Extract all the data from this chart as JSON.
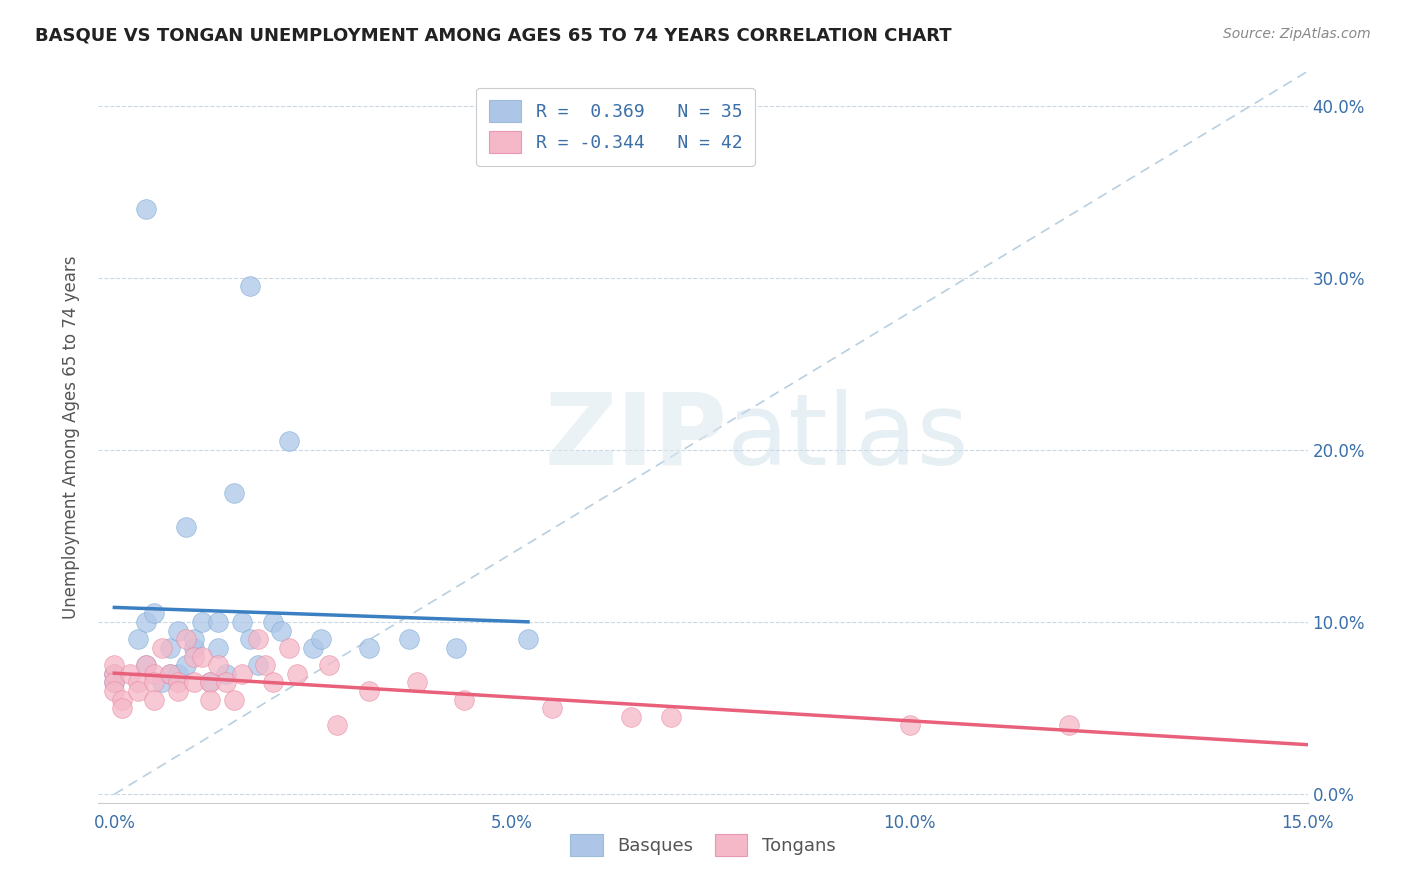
{
  "title": "BASQUE VS TONGAN UNEMPLOYMENT AMONG AGES 65 TO 74 YEARS CORRELATION CHART",
  "source": "Source: ZipAtlas.com",
  "ylabel": "Unemployment Among Ages 65 to 74 years",
  "xlim": [
    0.0,
    0.15
  ],
  "ylim": [
    0.0,
    0.42
  ],
  "legend_entries": [
    {
      "label": "R =  0.369   N = 35",
      "facecolor": "#adc6e8",
      "edgecolor": "#7aaad4"
    },
    {
      "label": "R = -0.344   N = 42",
      "facecolor": "#f5b8c8",
      "edgecolor": "#e888a0"
    }
  ],
  "basque_color": "#adc6e8",
  "basque_line_color": "#3a7fc1",
  "tongan_color": "#f5b8c8",
  "tongan_line_color": "#e8607a",
  "dashed_line_color": "#b8cfe0",
  "watermark_zip": "ZIP",
  "watermark_atlas": "atlas",
  "basque_scatter": [
    [
      0.0,
      0.065
    ],
    [
      0.0,
      0.07
    ],
    [
      0.003,
      0.09
    ],
    [
      0.004,
      0.1
    ],
    [
      0.004,
      0.075
    ],
    [
      0.005,
      0.105
    ],
    [
      0.006,
      0.065
    ],
    [
      0.007,
      0.085
    ],
    [
      0.007,
      0.07
    ],
    [
      0.008,
      0.095
    ],
    [
      0.008,
      0.07
    ],
    [
      0.009,
      0.075
    ],
    [
      0.01,
      0.085
    ],
    [
      0.01,
      0.09
    ],
    [
      0.011,
      0.1
    ],
    [
      0.012,
      0.065
    ],
    [
      0.013,
      0.1
    ],
    [
      0.013,
      0.085
    ],
    [
      0.014,
      0.07
    ],
    [
      0.016,
      0.1
    ],
    [
      0.017,
      0.09
    ],
    [
      0.018,
      0.075
    ],
    [
      0.02,
      0.1
    ],
    [
      0.021,
      0.095
    ],
    [
      0.025,
      0.085
    ],
    [
      0.026,
      0.09
    ],
    [
      0.032,
      0.085
    ],
    [
      0.037,
      0.09
    ],
    [
      0.043,
      0.085
    ],
    [
      0.052,
      0.09
    ],
    [
      0.015,
      0.175
    ],
    [
      0.017,
      0.295
    ],
    [
      0.022,
      0.205
    ],
    [
      0.004,
      0.34
    ],
    [
      0.009,
      0.155
    ]
  ],
  "tongan_scatter": [
    [
      0.0,
      0.07
    ],
    [
      0.0,
      0.075
    ],
    [
      0.0,
      0.065
    ],
    [
      0.0,
      0.06
    ],
    [
      0.001,
      0.055
    ],
    [
      0.001,
      0.05
    ],
    [
      0.002,
      0.07
    ],
    [
      0.003,
      0.065
    ],
    [
      0.003,
      0.06
    ],
    [
      0.004,
      0.075
    ],
    [
      0.005,
      0.07
    ],
    [
      0.005,
      0.065
    ],
    [
      0.005,
      0.055
    ],
    [
      0.006,
      0.085
    ],
    [
      0.007,
      0.07
    ],
    [
      0.008,
      0.065
    ],
    [
      0.008,
      0.06
    ],
    [
      0.009,
      0.09
    ],
    [
      0.01,
      0.08
    ],
    [
      0.01,
      0.065
    ],
    [
      0.011,
      0.08
    ],
    [
      0.012,
      0.065
    ],
    [
      0.012,
      0.055
    ],
    [
      0.013,
      0.075
    ],
    [
      0.014,
      0.065
    ],
    [
      0.015,
      0.055
    ],
    [
      0.016,
      0.07
    ],
    [
      0.018,
      0.09
    ],
    [
      0.019,
      0.075
    ],
    [
      0.02,
      0.065
    ],
    [
      0.022,
      0.085
    ],
    [
      0.023,
      0.07
    ],
    [
      0.027,
      0.075
    ],
    [
      0.032,
      0.06
    ],
    [
      0.038,
      0.065
    ],
    [
      0.044,
      0.055
    ],
    [
      0.055,
      0.05
    ],
    [
      0.065,
      0.045
    ],
    [
      0.07,
      0.045
    ],
    [
      0.1,
      0.04
    ],
    [
      0.12,
      0.04
    ],
    [
      0.028,
      0.04
    ]
  ],
  "x_tick_vals": [
    0.0,
    0.05,
    0.1,
    0.15
  ],
  "x_tick_labels": [
    "0.0%",
    "5.0%",
    "10.0%",
    "15.0%"
  ],
  "y_tick_vals": [
    0.0,
    0.1,
    0.2,
    0.3,
    0.4
  ],
  "y_tick_labels": [
    "0.0%",
    "10.0%",
    "20.0%",
    "30.0%",
    "40.0%"
  ]
}
